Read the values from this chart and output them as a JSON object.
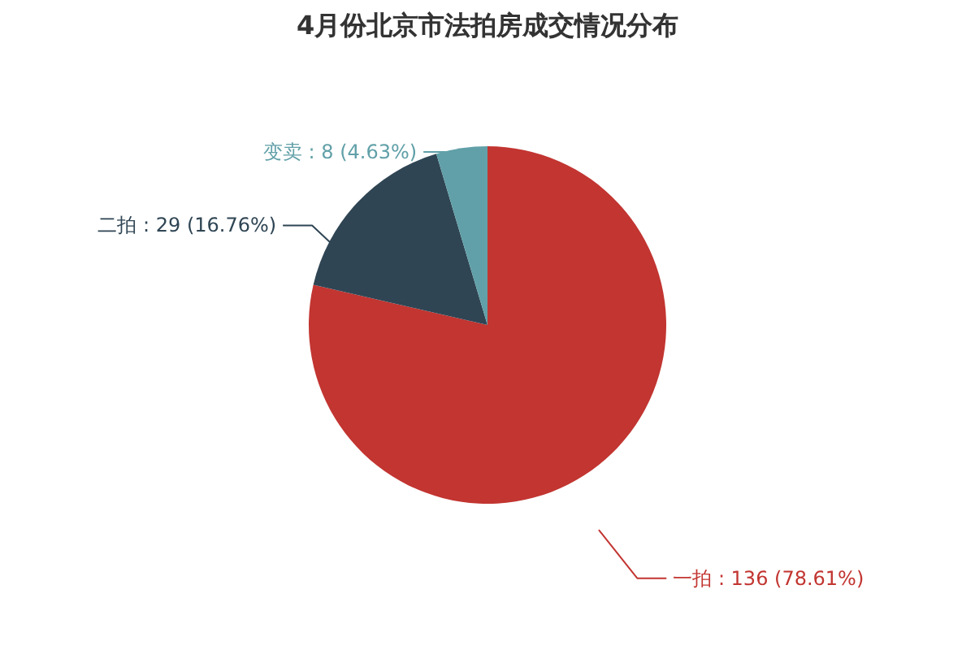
{
  "chart_data": {
    "type": "pie",
    "title": "4月份北京市法拍房成交情况分布",
    "categories": [
      "一拍",
      "二拍",
      "变卖"
    ],
    "values": [
      136,
      29,
      8
    ],
    "value_labels": [
      "136 (78.61%)",
      "29 (16.76%)",
      "8 (4.63%)"
    ],
    "colors": [
      "#c23531",
      "#2f4554",
      "#61a0a8"
    ]
  }
}
